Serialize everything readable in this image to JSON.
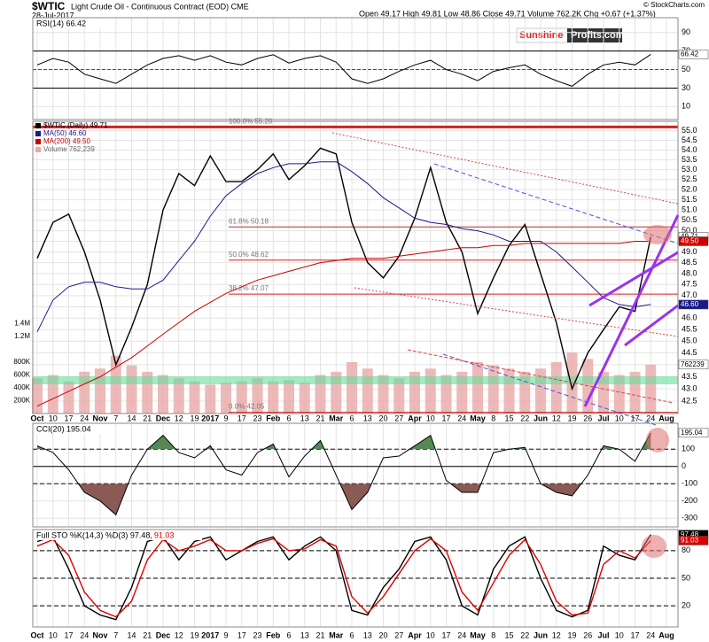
{
  "header": {
    "symbol": "$WTIC",
    "name": "Light Crude Oil - Continuous Contract (EOD) CME",
    "date": "28-Jul-2017",
    "quote": "Open 49.17  High 49.81  Low 48.86  Close 49.71  Volume 762.2K  Chg +0.67 (+1.37%)",
    "credit": "© StockCharts.com",
    "logo": [
      "Sunshine",
      "Profits.com"
    ]
  },
  "chart_data": [
    {
      "type": "line",
      "title": "RSI(14) 66.42",
      "color": "#000000",
      "values": [
        55,
        62,
        58,
        45,
        40,
        35,
        45,
        55,
        62,
        65,
        60,
        65,
        58,
        55,
        62,
        66,
        57,
        62,
        65,
        58,
        40,
        35,
        40,
        48,
        55,
        60,
        50,
        45,
        38,
        48,
        52,
        55,
        45,
        38,
        32,
        45,
        55,
        58,
        55,
        66.42,
        null
      ],
      "value_label": "66.42",
      "ylim": [
        -4,
        106
      ],
      "yticks": [
        10,
        30,
        50,
        70,
        90
      ],
      "lines": [
        30,
        50,
        70
      ]
    },
    {
      "type": "line",
      "log_scale": true,
      "categories": [
        "Oct",
        "10",
        "17",
        "24",
        "Nov",
        "7",
        "14",
        "21",
        "Dec",
        "12",
        "19",
        "2017",
        "9",
        "17",
        "23",
        "Feb",
        "6",
        "13",
        "21",
        "Mar",
        "6",
        "13",
        "20",
        "27",
        "Apr",
        "10",
        "17",
        "24",
        "May",
        "8",
        "15",
        "22",
        "Jun",
        "12",
        "19",
        "26",
        "Jul",
        "10",
        "17",
        "24",
        "Aug"
      ],
      "series": [
        {
          "name": "$WTIC (Daily) 49.71",
          "color": "#000000",
          "value_label": "49.71",
          "values": [
            48.7,
            50.4,
            50.8,
            49.0,
            46.8,
            44.0,
            45.6,
            47.5,
            51.0,
            52.8,
            52.2,
            53.7,
            52.4,
            52.4,
            53.0,
            53.8,
            52.5,
            53.2,
            54.1,
            53.8,
            50.4,
            48.5,
            47.8,
            48.8,
            50.6,
            53.1,
            50.4,
            49.0,
            46.2,
            47.8,
            49.3,
            50.3,
            48.0,
            45.8,
            43.0,
            44.5,
            45.5,
            46.5,
            46.3,
            49.71,
            null
          ]
        },
        {
          "name": "MA(50) 46.60",
          "color": "#1a1a8c",
          "value_label": "46.60",
          "values": [
            45.4,
            46.8,
            47.4,
            47.6,
            47.6,
            47.4,
            47.3,
            47.3,
            47.7,
            48.6,
            49.5,
            50.7,
            51.7,
            52.3,
            52.8,
            53.1,
            53.3,
            53.3,
            53.4,
            53.4,
            52.9,
            52.3,
            51.6,
            51.1,
            50.6,
            50.4,
            50.3,
            50.1,
            50.0,
            49.8,
            49.5,
            49.5,
            49.5,
            49.0,
            48.3,
            47.6,
            46.9,
            46.6,
            46.5,
            46.6,
            null
          ]
        },
        {
          "name": "MA(200) 49.50",
          "color": "#cc0000",
          "value_label": "49.50",
          "values": [
            42.3,
            42.6,
            42.9,
            43.2,
            43.5,
            43.9,
            44.3,
            44.8,
            45.3,
            45.8,
            46.3,
            46.7,
            47.1,
            47.4,
            47.7,
            47.9,
            48.1,
            48.3,
            48.5,
            48.6,
            48.7,
            48.7,
            48.7,
            48.8,
            48.9,
            49.0,
            49.1,
            49.2,
            49.2,
            49.3,
            49.3,
            49.4,
            49.4,
            49.4,
            49.4,
            49.4,
            49.4,
            49.4,
            49.5,
            49.5,
            null
          ]
        },
        {
          "name": "Volume 762,239",
          "color": "#e8a8a8",
          "axis": "y2",
          "value_label": "762239",
          "values": [
            550000,
            600000,
            500000,
            650000,
            700000,
            900000,
            750000,
            650000,
            600000,
            550000,
            500000,
            450000,
            480000,
            500000,
            550000,
            500000,
            520000,
            480000,
            600000,
            650000,
            800000,
            700000,
            600000,
            550000,
            650000,
            700000,
            600000,
            650000,
            800000,
            750000,
            700000,
            650000,
            700000,
            800000,
            950000,
            850000,
            650000,
            600000,
            650000,
            762239,
            null
          ]
        }
      ],
      "fib": [
        {
          "label": "100.0% 55.20",
          "value": 55.2
        },
        {
          "label": "61.8% 50.18",
          "value": 50.18
        },
        {
          "label": "50.0% 48.62",
          "value": 48.62
        },
        {
          "label": "38.2% 47.07",
          "value": 47.07
        },
        {
          "label": "0.0% 42.05",
          "value": 42.05
        }
      ],
      "ylim": [
        42,
        55.5
      ],
      "yticks": [
        {
          "value": 55,
          "label": "55.0"
        },
        54.5,
        {
          "value": 54,
          "label": "54.0"
        },
        53.5,
        {
          "value": 53,
          "label": "53.0"
        },
        52.5,
        {
          "value": 52,
          "label": "52.0"
        },
        51.5,
        {
          "value": 51,
          "label": "51.0"
        },
        50.5,
        {
          "value": 50,
          "label": "50.0"
        },
        49.5,
        {
          "value": 49,
          "label": "49.0"
        },
        48.5,
        {
          "value": 48,
          "label": "48.0"
        },
        47.5,
        {
          "value": 47,
          "label": "47.0"
        },
        46.5,
        {
          "value": 46,
          "label": "46.0"
        },
        45.5,
        {
          "value": 45,
          "label": "45.0"
        },
        44.5,
        {
          "value": 44,
          "label": "44.0"
        },
        43.5,
        {
          "value": 43,
          "label": "43.0"
        },
        42.5
      ],
      "y2lim": [
        0,
        4550000
      ],
      "y2ticks": [
        {
          "value": 200000,
          "label": "200K"
        },
        {
          "value": 400000,
          "label": "400K"
        },
        {
          "value": 600000,
          "label": "600K"
        },
        {
          "value": 800000,
          "label": "800K"
        },
        {
          "value": 1200000,
          "label": "1.2M"
        },
        {
          "value": 1400000,
          "label": "1.4M"
        }
      ]
    },
    {
      "type": "line",
      "title": "CCI(20) 195.04",
      "color": "#000000",
      "values": [
        120,
        80,
        -20,
        -150,
        -200,
        -280,
        -50,
        100,
        180,
        80,
        50,
        120,
        -20,
        -50,
        80,
        130,
        -60,
        60,
        150,
        -50,
        -250,
        -150,
        50,
        60,
        120,
        180,
        -80,
        -150,
        -150,
        80,
        100,
        110,
        -100,
        -150,
        -170,
        -50,
        120,
        100,
        30,
        195.04,
        null
      ],
      "value_label": "195.04",
      "ylim": [
        -350,
        250
      ],
      "yticks": [
        -300,
        -200,
        -100,
        0,
        100
      ],
      "lines": [
        -100,
        0,
        100
      ]
    },
    {
      "type": "line",
      "title": "Full STO %K(14,3) %D(3) 97.48,",
      "title_d": "91.03",
      "series": [
        {
          "name": "%K(14,3)",
          "color": "#000000",
          "value_label": "97.48",
          "values": [
            90,
            95,
            60,
            20,
            10,
            5,
            40,
            90,
            95,
            70,
            90,
            95,
            70,
            80,
            90,
            95,
            70,
            85,
            95,
            80,
            15,
            10,
            40,
            60,
            90,
            95,
            70,
            20,
            10,
            60,
            85,
            95,
            50,
            15,
            8,
            15,
            85,
            75,
            70,
            97.48,
            null
          ]
        },
        {
          "name": "%D(3)",
          "color": "#dd0000",
          "value_label": "91.03",
          "values": [
            85,
            92,
            75,
            35,
            15,
            8,
            25,
            70,
            92,
            80,
            85,
            92,
            80,
            80,
            88,
            93,
            80,
            82,
            92,
            85,
            30,
            12,
            30,
            55,
            80,
            93,
            80,
            35,
            15,
            45,
            75,
            92,
            65,
            25,
            10,
            12,
            65,
            80,
            72,
            91.03,
            null
          ]
        }
      ],
      "ylim": [
        -3,
        103
      ],
      "yticks": [
        20,
        50,
        80
      ],
      "lines": [
        20,
        50,
        80
      ]
    }
  ]
}
